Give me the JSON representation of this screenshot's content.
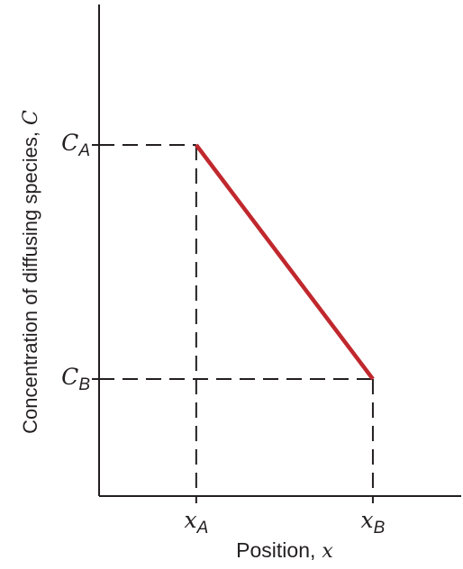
{
  "chart_data": {
    "type": "line",
    "title": "",
    "xlabel": "Position,",
    "xlabel_variable": "x",
    "ylabel": "Concentration of diffusing species,",
    "ylabel_variable": "C",
    "x_ticks": [
      {
        "symbol": "x",
        "subscript": "A",
        "value": 1
      },
      {
        "symbol": "x",
        "subscript": "B",
        "value": 2
      }
    ],
    "y_ticks": [
      {
        "symbol": "C",
        "subscript": "A",
        "value": 2
      },
      {
        "symbol": "C",
        "subscript": "B",
        "value": 1
      }
    ],
    "xlim": [
      0.45,
      2.5
    ],
    "ylim": [
      0.5,
      2.6
    ],
    "series": [
      {
        "x": [
          1,
          2
        ],
        "y": [
          2,
          1
        ],
        "color": "#c0282d"
      }
    ],
    "guides": "dashed",
    "grid": false,
    "legend": "none"
  }
}
